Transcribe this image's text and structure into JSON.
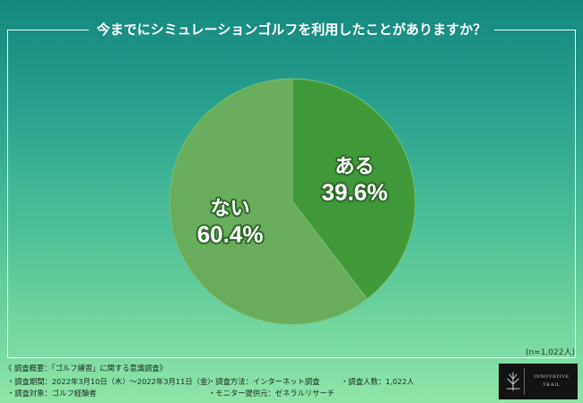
{
  "chart_data": {
    "type": "pie",
    "title": "今までにシミュレーションゴルフを利用したことがありますか？",
    "start": "top",
    "direction": "clockwise",
    "slices": [
      {
        "label": "ある",
        "value": 39.6,
        "value_label": "39.6%",
        "color": "#409a3a"
      },
      {
        "label": "ない",
        "value": 60.4,
        "value_label": "60.4%",
        "color": "#67ad5b"
      }
    ],
    "note": "(n=1,022人)"
  },
  "colors": {
    "label_outline": "#2c6a27",
    "slice_edge": "#7cbf70"
  },
  "footer": {
    "heading": "《 調査概要：「ゴルフ練習」に関する意識調査》",
    "period": "・調査期間：2022年3月10日（木）～2022年3月11日（金）",
    "target": "・調査対象：ゴルフ経験者",
    "method": "・調査方法：インターネット調査",
    "panel_provider": "・モニター提供元：ゼネラルリサーチ",
    "respondents": "・調査人数：1,022人"
  },
  "logo": {
    "icon": "tree-icon",
    "line1": "INNOVATIVE",
    "line2": "TRAIL"
  }
}
